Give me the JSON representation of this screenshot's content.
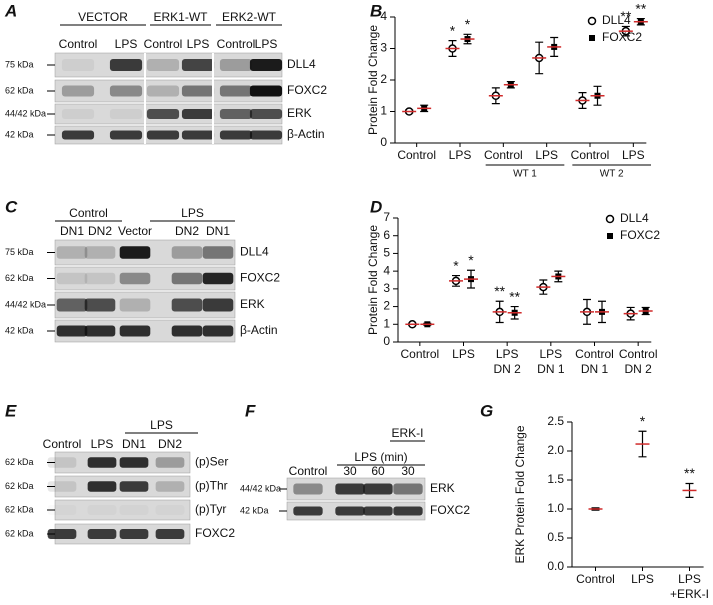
{
  "blots": [
    {
      "panel": "A",
      "headers": [
        "VECTOR",
        "ERK1-WT",
        "ERK2-WT"
      ],
      "lanes": [
        "Control",
        "LPS",
        "Control",
        "LPS",
        "Control",
        "LPS"
      ],
      "kda": [
        "75 kDa",
        "62 kDa",
        "44/42 kDa",
        "42 kDa"
      ],
      "proteins": [
        "DLL4",
        "FOXC2",
        "ERK",
        "β-Actin"
      ]
    },
    {
      "panel": "C",
      "headers": [
        "Control",
        "LPS"
      ],
      "lanes": [
        "DN1",
        "DN2",
        "Vector",
        "DN2",
        "DN1"
      ],
      "kda": [
        "75 kDa",
        "62 kDa",
        "44/42 kDa",
        "42 kDa"
      ],
      "proteins": [
        "DLL4",
        "FOXC2",
        "ERK",
        "β-Actin"
      ]
    },
    {
      "panel": "E",
      "headers": [
        "LPS"
      ],
      "lanes": [
        "Control",
        "LPS",
        "DN1",
        "DN2"
      ],
      "kda": [
        "62 kDa",
        "62 kDa",
        "62 kDa",
        "62 kDa"
      ],
      "proteins": [
        "(p)Ser",
        "(p)Thr",
        "(p)Tyr",
        "FOXC2"
      ]
    },
    {
      "panel": "F",
      "headers": [
        "ERK-I",
        "LPS (min)"
      ],
      "lanes": [
        "Control",
        "30",
        "60",
        "30"
      ],
      "kda": [
        "44/42 kDa",
        "42 kDa"
      ],
      "proteins": [
        "ERK",
        "FOXC2"
      ]
    }
  ],
  "chart_data": [
    {
      "type": "dot",
      "panel": "B",
      "y_label": "Protein Fold Change",
      "mean_color": "#d02a2a",
      "legend": "top-right",
      "categories": [
        "Control",
        "LPS",
        "Control",
        "LPS",
        "Control",
        "LPS"
      ],
      "groups": [
        null,
        "WT 1",
        "WT 2"
      ],
      "ylim": [
        0,
        4
      ],
      "yticks": [
        0,
        1,
        2,
        3,
        4
      ],
      "series": [
        {
          "name": "DLL4",
          "marker": "circle",
          "color": "#000000",
          "values": [
            1.0,
            3.0,
            1.5,
            2.7,
            1.35,
            3.55
          ],
          "errors": [
            0.05,
            0.25,
            0.25,
            0.5,
            0.25,
            0.15
          ],
          "significance": [
            null,
            "*",
            null,
            null,
            null,
            "**"
          ]
        },
        {
          "name": "FOXC2",
          "marker": "square",
          "color": "#000000",
          "values": [
            1.1,
            3.3,
            1.85,
            3.05,
            1.5,
            3.85
          ],
          "errors": [
            0.1,
            0.15,
            0.1,
            0.3,
            0.3,
            0.1
          ],
          "significance": [
            null,
            "*",
            null,
            null,
            null,
            "**"
          ]
        }
      ]
    },
    {
      "type": "dot",
      "panel": "D",
      "y_label": "Protein Fold Change",
      "mean_color": "#d02a2a",
      "legend": "top-right",
      "categories": [
        "Control",
        "LPS",
        "LPS",
        "LPS",
        "Control",
        "Control"
      ],
      "category_sublabels": [
        null,
        null,
        "DN 2",
        "DN 1",
        "DN 1",
        "DN 2"
      ],
      "ylim": [
        0,
        7
      ],
      "yticks": [
        0,
        1,
        2,
        3,
        4,
        5,
        6,
        7
      ],
      "series": [
        {
          "name": "DLL4",
          "marker": "circle",
          "color": "#000000",
          "values": [
            1.0,
            3.45,
            1.7,
            3.1,
            1.7,
            1.6
          ],
          "errors": [
            0.05,
            0.3,
            0.6,
            0.4,
            0.7,
            0.35
          ],
          "significance": [
            null,
            "*",
            "**",
            null,
            null,
            null
          ]
        },
        {
          "name": "FOXC2",
          "marker": "square",
          "color": "#000000",
          "values": [
            1.0,
            3.55,
            1.65,
            3.7,
            1.7,
            1.75
          ],
          "errors": [
            0.05,
            0.5,
            0.35,
            0.3,
            0.6,
            0.2
          ],
          "significance": [
            null,
            "*",
            "**",
            null,
            null,
            null
          ]
        }
      ]
    },
    {
      "type": "dot",
      "panel": "G",
      "y_label": "ERK Protein Fold Change",
      "mean_color": "#d02a2a",
      "categories": [
        "Control",
        "LPS",
        "LPS"
      ],
      "category_sublabels": [
        null,
        null,
        "+ERK-I"
      ],
      "ylim": [
        0,
        2.5
      ],
      "yticks": [
        {
          "value": 0,
          "label": "0.0"
        },
        0.5,
        {
          "value": 1,
          "label": "1.0"
        },
        1.5,
        {
          "value": 2,
          "label": "2.0"
        },
        2.5
      ],
      "series": [
        {
          "marker": "none",
          "color": "#000000",
          "values": [
            1.0,
            2.12,
            1.32
          ],
          "errors": [
            0.02,
            0.22,
            0.12
          ],
          "significance": [
            null,
            "*",
            "**"
          ]
        }
      ]
    }
  ]
}
